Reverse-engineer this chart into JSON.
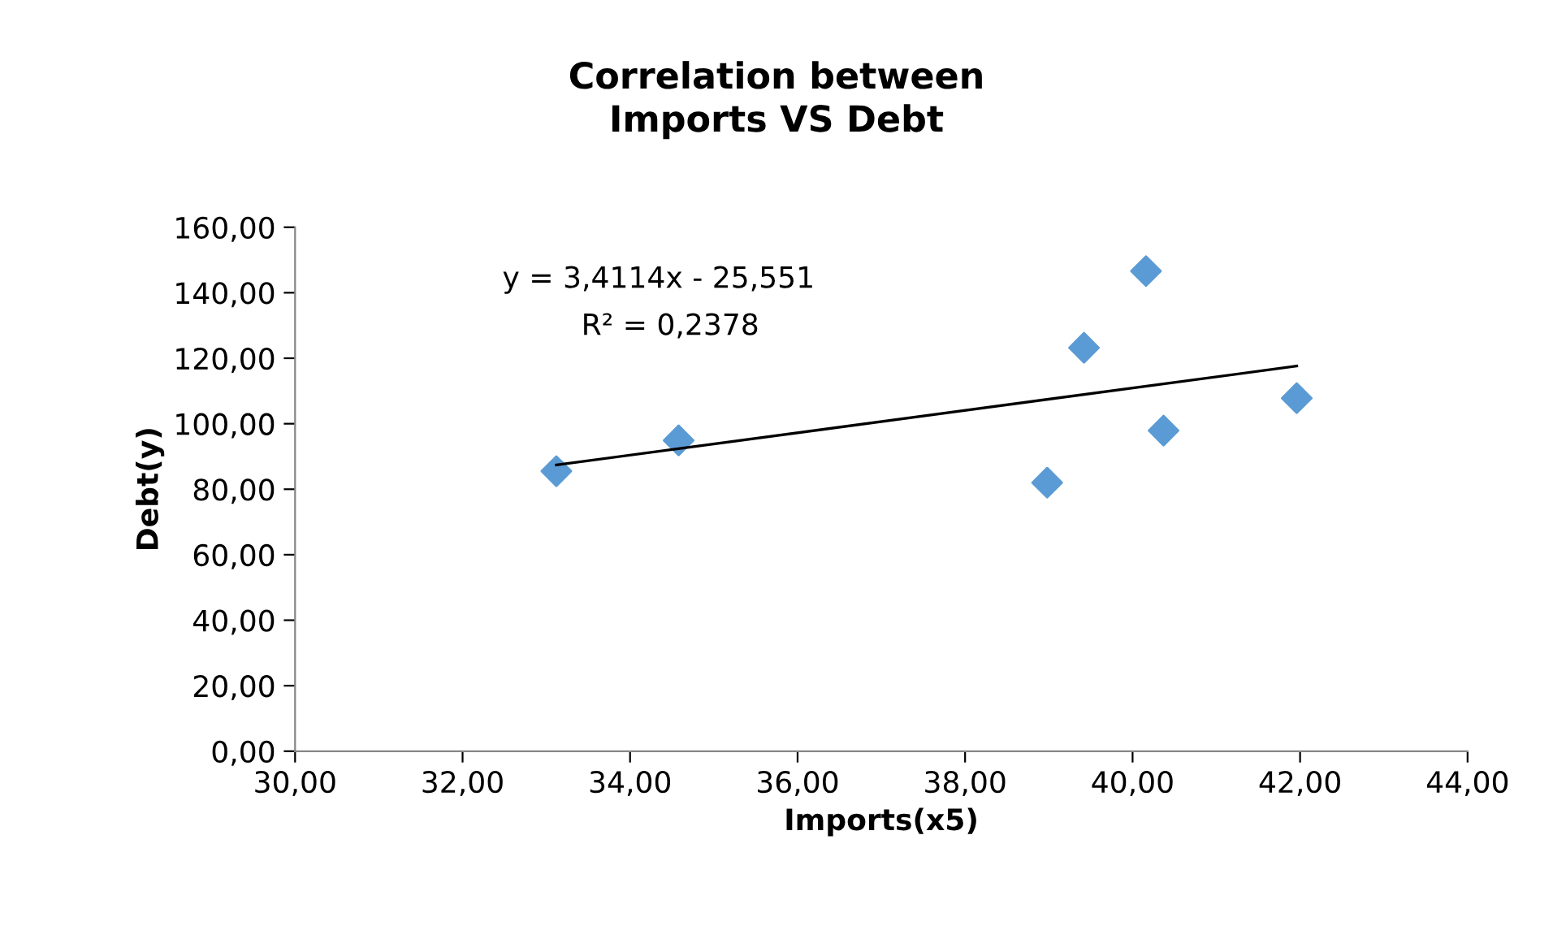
{
  "chart_data": {
    "type": "scatter",
    "title": "Correlation between\nImports VS Debt",
    "xlabel": "Imports(x5)",
    "ylabel": "Debt(y)",
    "annotations": [
      "y = 3,4114x - 25,551",
      "R² = 0,2378"
    ],
    "series": [
      {
        "color": "#5b9bd5",
        "marker": "diamond",
        "x": [
          33.12,
          34.58,
          38.98,
          39.42,
          40.16,
          40.37,
          41.96
        ],
        "values": [
          85.5,
          94.9,
          82.0,
          123.2,
          146.6,
          97.9,
          107.8
        ]
      },
      {
        "type": "line",
        "color": "#000000",
        "marker": "none",
        "line_style": "solid",
        "x": [
          33.12,
          41.96
        ],
        "values": [
          87.4,
          117.6
        ]
      }
    ],
    "xlim": [
      30,
      44
    ],
    "xticks": [
      {
        "value": 30,
        "label": "30,00"
      },
      {
        "value": 32,
        "label": "32,00"
      },
      {
        "value": 34,
        "label": "34,00"
      },
      {
        "value": 36,
        "label": "36,00"
      },
      {
        "value": 38,
        "label": "38,00"
      },
      {
        "value": 40,
        "label": "40,00"
      },
      {
        "value": 42,
        "label": "42,00"
      },
      {
        "value": 44,
        "label": "44,00"
      }
    ],
    "ylim": [
      0,
      160
    ],
    "yticks": [
      {
        "value": 0,
        "label": "0,00"
      },
      {
        "value": 20,
        "label": "20,00"
      },
      {
        "value": 40,
        "label": "40,00"
      },
      {
        "value": 60,
        "label": "60,00"
      },
      {
        "value": 80,
        "label": "80,00"
      },
      {
        "value": 100,
        "label": "100,00"
      },
      {
        "value": 120,
        "label": "120,00"
      },
      {
        "value": 140,
        "label": "140,00"
      },
      {
        "value": 160,
        "label": "160,00"
      }
    ],
    "grid": false,
    "legend": false
  }
}
